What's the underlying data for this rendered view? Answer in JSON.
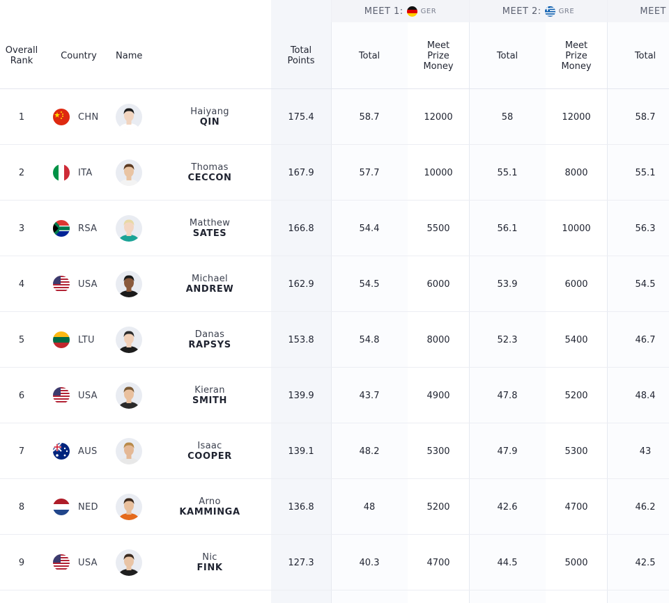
{
  "meets": [
    {
      "label": "MEET 1:",
      "code": "GER",
      "flag_icon": "germany-flag-icon"
    },
    {
      "label": "MEET 2:",
      "code": "GRE",
      "flag_icon": "greece-flag-icon"
    },
    {
      "label": "MEET",
      "code": "",
      "flag_icon": ""
    }
  ],
  "headers": {
    "rank": "Overall\nRank",
    "country": "Country",
    "name": "Name",
    "total_points": "Total\nPoints",
    "m1_total": "Total",
    "m1_prize": "Meet\nPrize\nMoney",
    "m2_total": "Total",
    "m2_prize": "Meet\nPrize\nMoney",
    "m3_total": "Total"
  },
  "rows": [
    {
      "rank": "1",
      "country": "CHN",
      "first": "Haiyang",
      "last": "QIN",
      "total_points": "175.4",
      "m1_total": "58.7",
      "m1_prize": "12000",
      "m2_total": "58",
      "m2_prize": "12000",
      "m3_total": "58.7"
    },
    {
      "rank": "2",
      "country": "ITA",
      "first": "Thomas",
      "last": "CECCON",
      "total_points": "167.9",
      "m1_total": "57.7",
      "m1_prize": "10000",
      "m2_total": "55.1",
      "m2_prize": "8000",
      "m3_total": "55.1"
    },
    {
      "rank": "3",
      "country": "RSA",
      "first": "Matthew",
      "last": "SATES",
      "total_points": "166.8",
      "m1_total": "54.4",
      "m1_prize": "5500",
      "m2_total": "56.1",
      "m2_prize": "10000",
      "m3_total": "56.3"
    },
    {
      "rank": "4",
      "country": "USA",
      "first": "Michael",
      "last": "ANDREW",
      "total_points": "162.9",
      "m1_total": "54.5",
      "m1_prize": "6000",
      "m2_total": "53.9",
      "m2_prize": "6000",
      "m3_total": "54.5"
    },
    {
      "rank": "5",
      "country": "LTU",
      "first": "Danas",
      "last": "RAPSYS",
      "total_points": "153.8",
      "m1_total": "54.8",
      "m1_prize": "8000",
      "m2_total": "52.3",
      "m2_prize": "5400",
      "m3_total": "46.7"
    },
    {
      "rank": "6",
      "country": "USA",
      "first": "Kieran",
      "last": "SMITH",
      "total_points": "139.9",
      "m1_total": "43.7",
      "m1_prize": "4900",
      "m2_total": "47.8",
      "m2_prize": "5200",
      "m3_total": "48.4"
    },
    {
      "rank": "7",
      "country": "AUS",
      "first": "Isaac",
      "last": "COOPER",
      "total_points": "139.1",
      "m1_total": "48.2",
      "m1_prize": "5300",
      "m2_total": "47.9",
      "m2_prize": "5300",
      "m3_total": "43"
    },
    {
      "rank": "8",
      "country": "NED",
      "first": "Arno",
      "last": "KAMMINGA",
      "total_points": "136.8",
      "m1_total": "48",
      "m1_prize": "5200",
      "m2_total": "42.6",
      "m2_prize": "4700",
      "m3_total": "46.2"
    },
    {
      "rank": "9",
      "country": "USA",
      "first": "Nic",
      "last": "FINK",
      "total_points": "127.3",
      "m1_total": "40.3",
      "m1_prize": "4700",
      "m2_total": "44.5",
      "m2_prize": "5000",
      "m3_total": "42.5"
    }
  ],
  "colors": {
    "shaded_column": "#f4f6fa",
    "meet_header": "#f3f4f8",
    "row_divider": "#eceef3"
  }
}
